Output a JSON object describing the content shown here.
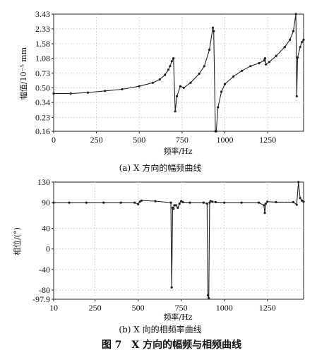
{
  "figure_caption": "图 7　X 方向的幅频与相频曲线",
  "chart_data": [
    {
      "type": "line",
      "caption": "(a) X 方向的幅频曲线",
      "xlabel": "频率/Hz",
      "ylabel": "幅值/10⁻⁵ mm",
      "xlim": [
        0,
        1460
      ],
      "ylim": [
        0.16,
        3.43
      ],
      "y_scale": "log",
      "grid": true,
      "xticks": [
        0,
        250,
        500,
        750,
        1000,
        1250
      ],
      "xtick_labels": [
        "0",
        "250",
        "500",
        "750",
        "1000",
        "1250"
      ],
      "yticks": [
        0.16,
        0.23,
        0.34,
        0.5,
        0.73,
        1.08,
        1.58,
        2.33,
        3.43
      ],
      "ytick_labels": [
        "0.16",
        "0.23",
        "0.34",
        "0.50",
        "0.73",
        "1.08",
        "1.58",
        "2.33",
        "3.43"
      ],
      "series": [
        {
          "x": [
            0,
            100,
            200,
            300,
            400,
            500,
            580,
            620,
            650,
            670,
            680,
            690,
            700,
            710,
            720,
            740,
            760,
            800,
            850,
            880,
            910,
            930,
            935,
            945,
            950,
            960,
            980,
            1000,
            1050,
            1100,
            1150,
            1200,
            1230,
            1235,
            1240,
            1260,
            1300,
            1350,
            1380,
            1400,
            1415,
            1420,
            1425,
            1440,
            1450,
            1460
          ],
          "y": [
            0.43,
            0.43,
            0.44,
            0.46,
            0.48,
            0.52,
            0.57,
            0.62,
            0.7,
            0.8,
            0.88,
            1.0,
            1.08,
            0.27,
            0.4,
            0.52,
            0.5,
            0.57,
            0.72,
            0.88,
            1.35,
            2.4,
            2.2,
            0.16,
            0.16,
            0.3,
            0.45,
            0.55,
            0.67,
            0.78,
            0.88,
            0.95,
            1.02,
            1.08,
            0.92,
            0.98,
            1.15,
            1.45,
            1.75,
            2.2,
            3.43,
            0.4,
            1.1,
            1.45,
            1.65,
            1.75
          ]
        }
      ]
    },
    {
      "type": "line",
      "caption": "(b) X 向的相频率曲线",
      "xlabel": "频率/Hz",
      "ylabel": "相位/(°)",
      "xlim": [
        10,
        1460
      ],
      "ylim": [
        -97.9,
        130
      ],
      "grid": true,
      "xticks": [
        10,
        250,
        500,
        750,
        1000,
        1250
      ],
      "xtick_labels": [
        "10",
        "250",
        "500",
        "750",
        "1000",
        "1250"
      ],
      "yticks": [
        -97.9,
        -80,
        -40,
        0,
        40,
        90,
        130
      ],
      "ytick_labels": [
        "-97.9",
        "-80",
        "-40",
        "0",
        "40",
        "90",
        "130"
      ],
      "series": [
        {
          "x": [
            10,
            100,
            200,
            300,
            400,
            480,
            500,
            510,
            520,
            600,
            690,
            695,
            700,
            705,
            710,
            720,
            730,
            740,
            750,
            760,
            800,
            880,
            900,
            905,
            910,
            915,
            920,
            930,
            950,
            1000,
            1100,
            1200,
            1230,
            1235,
            1240,
            1250,
            1300,
            1400,
            1420,
            1430,
            1440,
            1450,
            1460
          ],
          "y": [
            90,
            90,
            90,
            90,
            90,
            90,
            87,
            92,
            94,
            93,
            90,
            -75,
            80,
            78,
            85,
            85,
            80,
            88,
            93,
            91,
            90,
            90,
            88,
            -90,
            -96,
            90,
            93,
            92,
            91,
            90,
            90,
            90,
            85,
            70,
            88,
            92,
            91,
            91,
            86,
            130,
            99,
            94,
            92
          ]
        }
      ]
    }
  ]
}
